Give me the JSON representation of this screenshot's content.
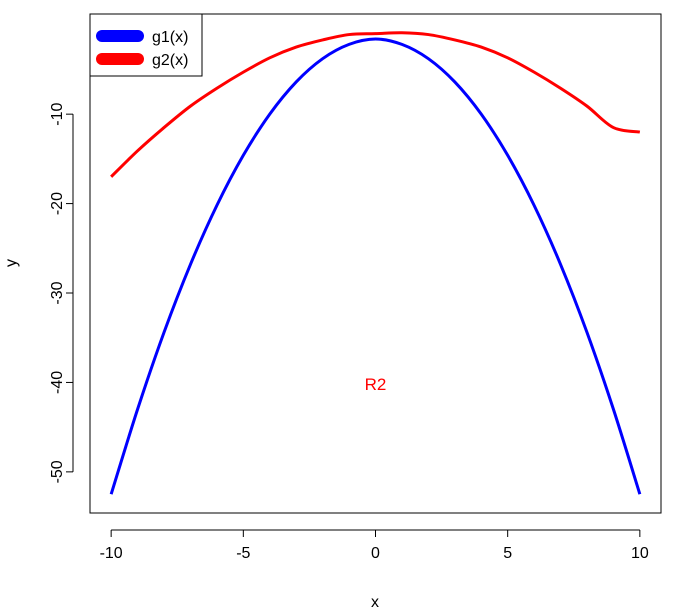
{
  "chart_data": {
    "type": "line",
    "xlabel": "x",
    "ylabel": "y",
    "xlim": [
      -10.8,
      10.8
    ],
    "ylim": [
      -54.6,
      1.2
    ],
    "x_ticks": [
      -10,
      -5,
      0,
      5,
      10
    ],
    "y_ticks": [
      -50,
      -40,
      -30,
      -20,
      -10
    ],
    "grid": false,
    "legend": {
      "position": "top-left",
      "entries": [
        "g1(x)",
        "g2(x)"
      ]
    },
    "annotation": {
      "text": "R2",
      "x": 0,
      "y": -40.2,
      "color": "#ff0000"
    },
    "series": [
      {
        "name": "g1(x)",
        "color": "#0000ff",
        "x": [
          -10,
          -9,
          -8,
          -7,
          -6,
          -5,
          -4,
          -3,
          -2,
          -1,
          0,
          1,
          2,
          3,
          4,
          5,
          6,
          7,
          8,
          9,
          10
        ],
        "y": [
          -52.5,
          -43.0,
          -34.4,
          -26.8,
          -20.2,
          -14.6,
          -10.0,
          -6.4,
          -3.8,
          -2.2,
          -1.6,
          -2.2,
          -3.8,
          -6.4,
          -10.0,
          -14.6,
          -20.2,
          -26.8,
          -34.4,
          -43.0,
          -52.5
        ]
      },
      {
        "name": "g2(x)",
        "color": "#ff0000",
        "x": [
          -10,
          -9,
          -8,
          -7,
          -6,
          -5,
          -4,
          -3,
          -2,
          -1,
          0,
          1,
          2,
          3,
          4,
          5,
          6,
          7,
          8,
          9,
          10
        ],
        "y": [
          -17.0,
          -14.1,
          -11.5,
          -9.1,
          -7.1,
          -5.3,
          -3.7,
          -2.5,
          -1.7,
          -1.1,
          -1.0,
          -0.9,
          -1.1,
          -1.7,
          -2.5,
          -3.7,
          -5.3,
          -7.1,
          -9.1,
          -11.5,
          -12.0
        ]
      }
    ]
  }
}
